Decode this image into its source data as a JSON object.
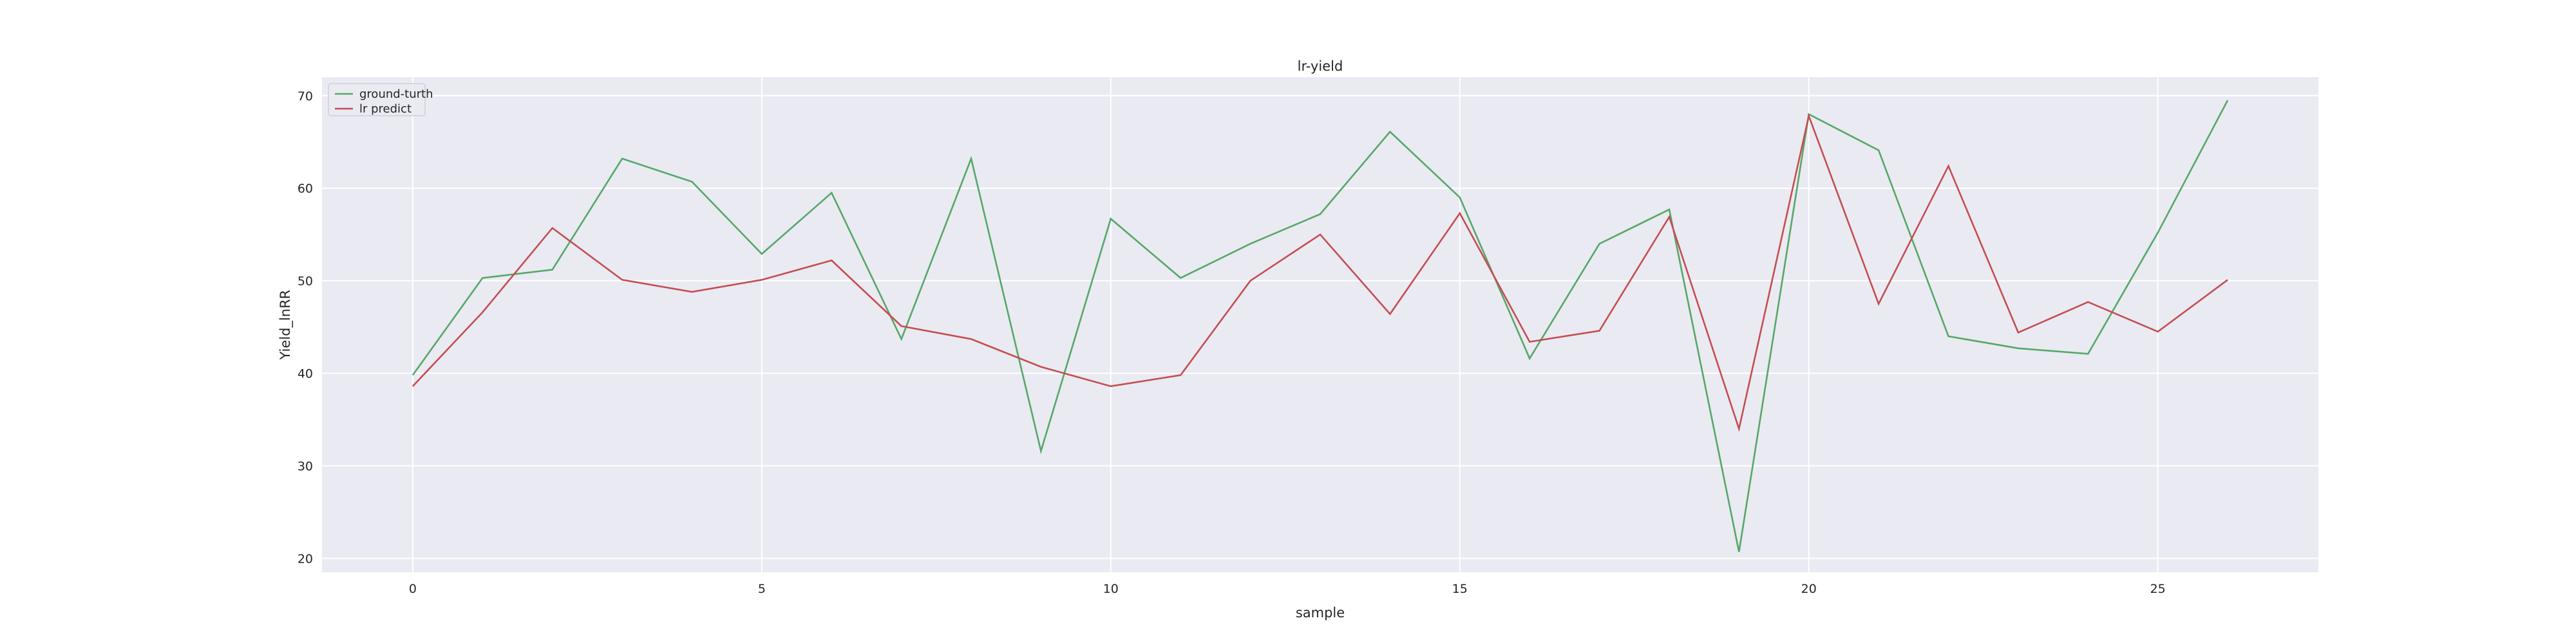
{
  "chart_data": {
    "type": "line",
    "title": "lr-yield",
    "xlabel": "sample",
    "ylabel": "Yield_lnRR",
    "xlim": [
      -1.3,
      27.3
    ],
    "ylim": [
      18.5,
      72.0
    ],
    "x_ticks": [
      0,
      5,
      10,
      15,
      20,
      25
    ],
    "y_ticks": [
      20,
      30,
      40,
      50,
      60,
      70
    ],
    "grid": true,
    "legend_position": "top-left",
    "x": [
      0,
      1,
      2,
      3,
      4,
      5,
      6,
      7,
      8,
      9,
      10,
      11,
      12,
      13,
      14,
      15,
      16,
      17,
      18,
      19,
      20,
      21,
      22,
      23,
      24,
      25,
      26
    ],
    "series": [
      {
        "name": "ground-turth",
        "color": "#55a868",
        "values": [
          39.8,
          50.3,
          51.2,
          63.2,
          60.7,
          52.9,
          59.5,
          43.7,
          63.2,
          31.6,
          56.7,
          50.3,
          54.0,
          57.2,
          66.1,
          59.0,
          41.6,
          54.0,
          57.7,
          20.7,
          68.0,
          64.1,
          44.0,
          42.7,
          42.1,
          55.2,
          69.5
        ]
      },
      {
        "name": "lr predict",
        "color": "#c44e52",
        "values": [
          38.6,
          46.6,
          55.7,
          50.1,
          48.8,
          50.1,
          52.2,
          45.1,
          43.7,
          40.7,
          38.6,
          39.8,
          50.0,
          55.0,
          46.4,
          57.3,
          43.4,
          44.6,
          56.9,
          34.0,
          67.8,
          47.5,
          62.4,
          44.4,
          47.7,
          44.5,
          50.1
        ]
      }
    ]
  }
}
